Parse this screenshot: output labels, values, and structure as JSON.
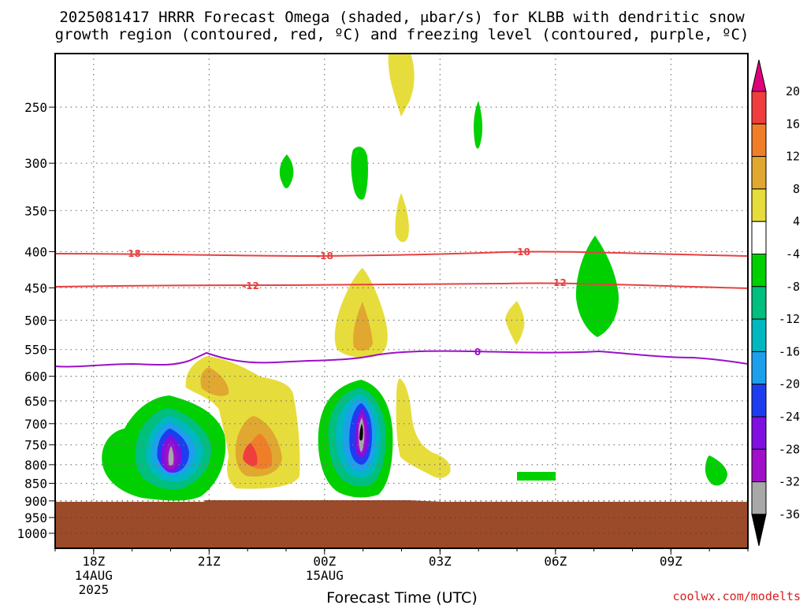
{
  "title_line1": "2025081417 HRRR Forecast Omega (shaded, μbar/s) for KLBB with dendritic snow",
  "title_line2": "growth region (contoured, red, ºC) and freezing level (contoured, purple, ºC)",
  "credit": "coolwx.com/modelts",
  "chart_data": {
    "type": "heatmap",
    "xlabel": "Forecast Time (UTC)",
    "ylabel": "",
    "y_axis_scale": "log-pressure",
    "ylim": [
      1050,
      210
    ],
    "xlim_hours": [
      17,
      11
    ],
    "x_ticks": [
      {
        "label": "18Z",
        "sub1": "14AUG",
        "sub2": "2025"
      },
      {
        "label": "21Z",
        "sub1": "",
        "sub2": ""
      },
      {
        "label": "00Z",
        "sub1": "15AUG",
        "sub2": ""
      },
      {
        "label": "03Z",
        "sub1": "",
        "sub2": ""
      },
      {
        "label": "06Z",
        "sub1": "",
        "sub2": ""
      },
      {
        "label": "09Z",
        "sub1": "",
        "sub2": ""
      }
    ],
    "y_ticks": [
      "250",
      "300",
      "350",
      "400",
      "450",
      "500",
      "550",
      "600",
      "650",
      "700",
      "750",
      "800",
      "850",
      "900",
      "950",
      "1000"
    ],
    "grid": true,
    "colorbar": {
      "labels": [
        "20",
        "16",
        "12",
        "8",
        "4",
        "-4",
        "-8",
        "-12",
        "-16",
        "-20",
        "-24",
        "-28",
        "-32",
        "-36"
      ],
      "colors": [
        "#e0007a",
        "#f03d3d",
        "#f07e28",
        "#e0a830",
        "#e6dd3c",
        "#ffffff",
        "#00d000",
        "#00bf7f",
        "#00b8c0",
        "#1ca0ec",
        "#1d3ef0",
        "#7f10e0",
        "#a010c8",
        "#a8a8a8",
        "#000000"
      ]
    },
    "terrain_color": "#9b4b2a",
    "contour_labels": [
      {
        "value": "-18",
        "color": "#e84040"
      },
      {
        "value": "-18",
        "color": "#e84040"
      },
      {
        "value": "-18",
        "color": "#e84040"
      },
      {
        "value": "-12",
        "color": "#e84040"
      },
      {
        "value": "-12",
        "color": "#e84040"
      },
      {
        "value": "0",
        "color": "#9b10c8"
      }
    ]
  }
}
